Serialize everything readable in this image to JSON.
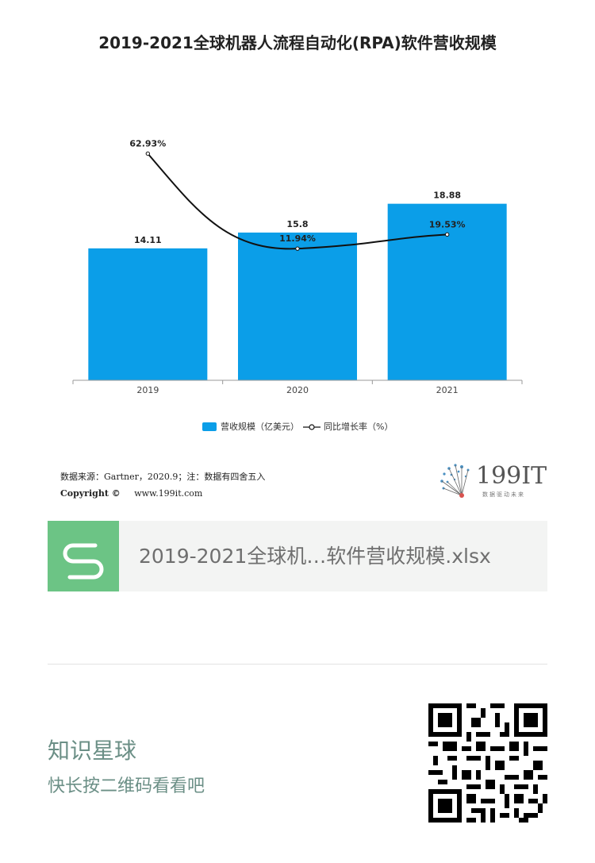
{
  "chart_data": {
    "type": "bar",
    "title": "2019-2021全球机器人流程自动化(RPA)软件营收规模",
    "categories": [
      "2019",
      "2020",
      "2021"
    ],
    "series": [
      {
        "name": "营收规模（亿美元）",
        "type": "bar",
        "values": [
          14.11,
          15.8,
          18.88
        ],
        "labels": [
          "14.11",
          "15.8",
          "18.88"
        ],
        "color": "#0b9ee8"
      },
      {
        "name": "同比增长率（%）",
        "type": "line",
        "values": [
          62.93,
          11.94,
          19.53
        ],
        "labels": [
          "62.93%",
          "11.94%",
          "19.53%"
        ],
        "color": "#111111"
      }
    ],
    "bar_ylim": [
      0,
      22.5
    ],
    "line_ylim": [
      0,
      90
    ],
    "grid": false,
    "legend_position": "bottom"
  },
  "source": {
    "line1": "数据来源：Gartner，2020.9；注：数据有四舍五入",
    "copyright": "Copyright ©",
    "site": "www.199it.com"
  },
  "logo": {
    "text": "199IT",
    "tagline": "数据驱动未来"
  },
  "file_card": {
    "icon": "spreadsheet-s-icon",
    "name": "2019-2021全球机…软件营收规模.xlsx"
  },
  "promo": {
    "title": "知识星球",
    "subtitle": "快长按二维码看看吧"
  },
  "colors": {
    "bar": "#0b9ee8",
    "file_icon": "#6cc485",
    "promo_text": "#6b8f86"
  }
}
